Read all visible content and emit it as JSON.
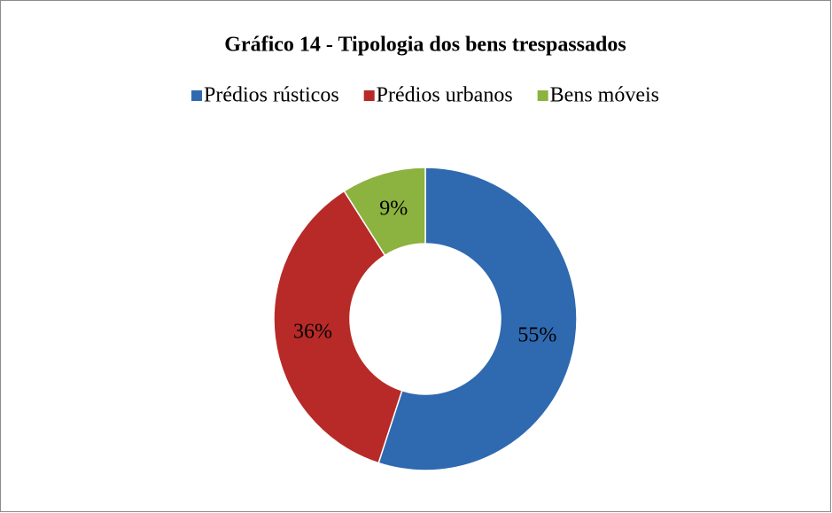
{
  "chart_data": {
    "type": "donut",
    "title": "Gráfico 14 - Tipologia dos bens trespassados",
    "categories": [
      "Prédios rústicos",
      "Prédios urbanos",
      "Bens móveis"
    ],
    "values": [
      55,
      36,
      9
    ],
    "value_labels": [
      "55%",
      "36%",
      "9%"
    ],
    "colors": [
      "#2f69b0",
      "#b82a27",
      "#8cb23f"
    ],
    "legend": "top"
  }
}
